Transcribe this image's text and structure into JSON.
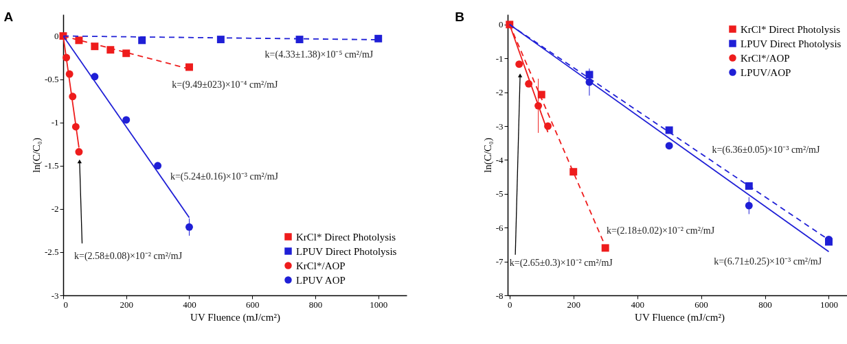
{
  "chart_data": [
    {
      "type": "scatter",
      "title": "A",
      "xlabel": "UV Fluence (mJ/cm²)",
      "ylabel": "ln(C/C₀)",
      "xlim": [
        0,
        1090
      ],
      "ylim": [
        -3,
        0.25
      ],
      "xticks": [
        0,
        200,
        400,
        600,
        800,
        1000
      ],
      "yticks": [
        0,
        -0.5,
        -1,
        -1.5,
        -2,
        -2.5,
        -3
      ],
      "grid": false,
      "legend": "bottom right",
      "series": [
        {
          "name": "KrCl* Direct Photolysis",
          "color": "#ee1c1c",
          "marker": "square",
          "x": [
            0,
            50,
            100,
            150,
            200,
            400
          ],
          "values": [
            0,
            -0.05,
            -0.12,
            -0.16,
            -0.2,
            -0.36
          ]
        },
        {
          "name": "LPUV Direct Photolysis",
          "color": "#1f1fd6",
          "marker": "square",
          "x": [
            250,
            500,
            750,
            1000
          ],
          "values": [
            -0.05,
            -0.04,
            -0.04,
            -0.03
          ]
        },
        {
          "name": "KrCl*/AOP",
          "color": "#ee1c1c",
          "marker": "circle",
          "x": [
            10,
            20,
            30,
            40,
            50
          ],
          "values": [
            -0.25,
            -0.44,
            -0.7,
            -1.05,
            -1.34
          ]
        },
        {
          "name": "LPUV AOP",
          "color": "#1f1fd6",
          "marker": "circle",
          "x": [
            100,
            200,
            300,
            400
          ],
          "values": [
            -0.47,
            -0.97,
            -1.5,
            -2.21
          ],
          "errors": [
            null,
            null,
            null,
            0.1
          ]
        },
        {
          "type": "line",
          "color": "#ee1c1c",
          "line_style": "dashed",
          "x": [
            0,
            400
          ],
          "values": [
            0,
            -0.38
          ]
        },
        {
          "type": "line",
          "color": "#1f1fd6",
          "line_style": "dashed",
          "x": [
            0,
            1000
          ],
          "values": [
            0,
            -0.043
          ]
        },
        {
          "type": "line",
          "color": "#ee1c1c",
          "line_style": "solid",
          "x": [
            0,
            50
          ],
          "values": [
            0,
            -1.29
          ]
        },
        {
          "type": "line",
          "color": "#1f1fd6",
          "line_style": "solid",
          "x": [
            0,
            400
          ],
          "values": [
            0,
            -2.1
          ]
        }
      ],
      "annotations": [
        "k=(4.33±1.38)×10⁻⁵ cm²/mJ",
        "k=(9.49±023)×10⁻⁴ cm²/mJ",
        "k=(5.24±0.16)×10⁻³ cm²/mJ",
        "k=(2.58±0.08)×10⁻² cm²/mJ"
      ]
    },
    {
      "type": "scatter",
      "title": "B",
      "xlabel": "UV Fluence (mJ/cm²)",
      "ylabel": "ln(C/C₀)",
      "xlim": [
        -6,
        1070
      ],
      "ylim": [
        -8,
        0.3
      ],
      "xticks": [
        0,
        200,
        400,
        600,
        800,
        1000
      ],
      "yticks": [
        0,
        -1,
        -2,
        -3,
        -4,
        -5,
        -6,
        -7,
        -8
      ],
      "grid": false,
      "legend": "top right",
      "series": [
        {
          "name": "KrCl* Direct Photolysis",
          "color": "#ee1c1c",
          "marker": "square",
          "x": [
            0,
            100,
            200,
            300
          ],
          "values": [
            0,
            -2.07,
            -4.35,
            -6.6
          ]
        },
        {
          "name": "LPUV Direct Photolysis",
          "color": "#1f1fd6",
          "marker": "square",
          "x": [
            250,
            500,
            750,
            1000
          ],
          "values": [
            -1.48,
            -3.12,
            -4.77,
            -6.42
          ]
        },
        {
          "name": "KrCl*/AOP",
          "color": "#ee1c1c",
          "marker": "circle",
          "x": [
            30,
            60,
            90,
            120
          ],
          "values": [
            -1.17,
            -1.75,
            -2.4,
            -3.0
          ],
          "errors": [
            null,
            null,
            0.8,
            null
          ]
        },
        {
          "name": "LPUV/AOP",
          "color": "#1f1fd6",
          "marker": "circle",
          "x": [
            250,
            500,
            750,
            1000
          ],
          "values": [
            -1.7,
            -3.58,
            -5.35,
            -6.35
          ],
          "errors": [
            0.4,
            null,
            0.25,
            null
          ]
        },
        {
          "type": "line",
          "color": "#ee1c1c",
          "line_style": "dashed",
          "x": [
            0,
            300
          ],
          "values": [
            0,
            -6.55
          ]
        },
        {
          "type": "line",
          "color": "#1f1fd6",
          "line_style": "dashed",
          "x": [
            0,
            1000
          ],
          "values": [
            0,
            -6.36
          ]
        },
        {
          "type": "line",
          "color": "#ee1c1c",
          "line_style": "solid",
          "x": [
            0,
            120
          ],
          "values": [
            0,
            -3.18
          ]
        },
        {
          "type": "line",
          "color": "#1f1fd6",
          "line_style": "solid",
          "x": [
            0,
            1000
          ],
          "values": [
            0,
            -6.71
          ]
        }
      ],
      "annotations": [
        "k=(6.36±0.05)×10⁻³ cm²/mJ",
        "k=(2.18±0.02)×10⁻² cm²/mJ",
        "k=(2.65±0.3)×10⁻² cm²/mJ",
        "k=(6.71±0.25)×10⁻³ cm²/mJ"
      ]
    }
  ]
}
